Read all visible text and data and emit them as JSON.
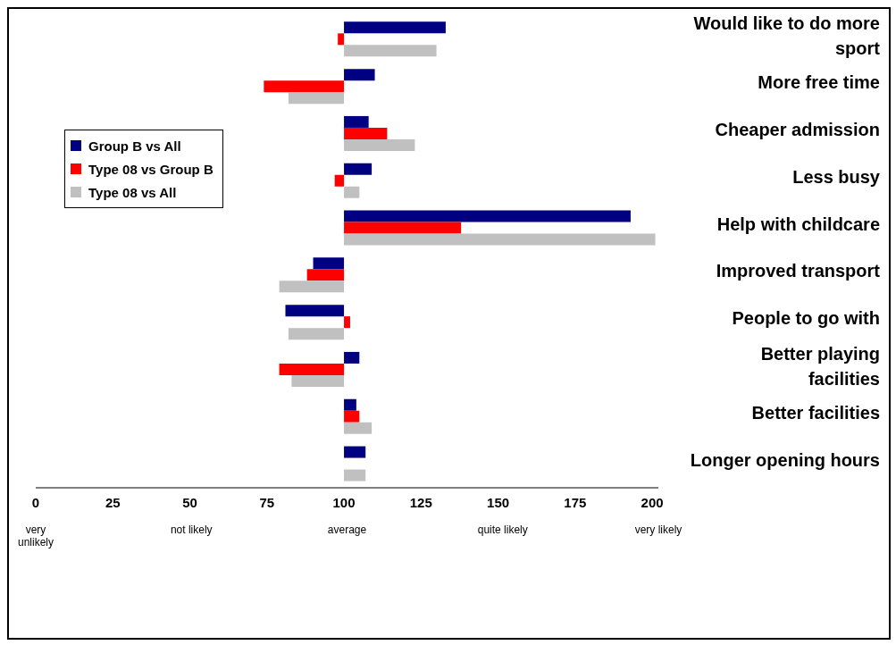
{
  "chart_data": {
    "type": "bar",
    "orientation": "horizontal",
    "categories": [
      "Would like to do more sport",
      "More free time",
      "Cheaper admission",
      "Less busy",
      "Help with childcare",
      "Improved transport",
      "People to go with",
      "Better playing facilities",
      "Better facilities",
      "Longer opening hours"
    ],
    "series": [
      {
        "name": "Group B vs All",
        "color": "#000080",
        "base": [
          100,
          100,
          100,
          100,
          100,
          100,
          100,
          100,
          100,
          100
        ],
        "values": [
          33,
          10,
          8,
          9,
          93,
          -10,
          -19,
          5,
          4,
          7
        ]
      },
      {
        "name": "Type 08 vs Group B",
        "color": "#ff0000",
        "base": [
          100,
          100,
          100,
          100,
          100,
          100,
          100,
          100,
          100,
          null
        ],
        "values": [
          -2,
          -26,
          14,
          -3,
          38,
          -12,
          2,
          -21,
          5,
          null
        ]
      },
      {
        "name": "Type 08 vs All",
        "color": "#c0c0c0",
        "base": [
          100,
          100,
          100,
          100,
          100,
          100,
          100,
          100,
          100,
          100
        ],
        "values": [
          30,
          -18,
          23,
          5,
          101,
          -21,
          -18,
          -17,
          9,
          7
        ]
      }
    ],
    "xlim": [
      0,
      202
    ],
    "xticks": [
      0,
      25,
      50,
      75,
      100,
      125,
      150,
      175,
      200
    ],
    "annotations": [
      "very unlikely",
      "not likely",
      "average",
      "quite likely",
      "very likely"
    ],
    "grid": false,
    "legend": "top left"
  }
}
